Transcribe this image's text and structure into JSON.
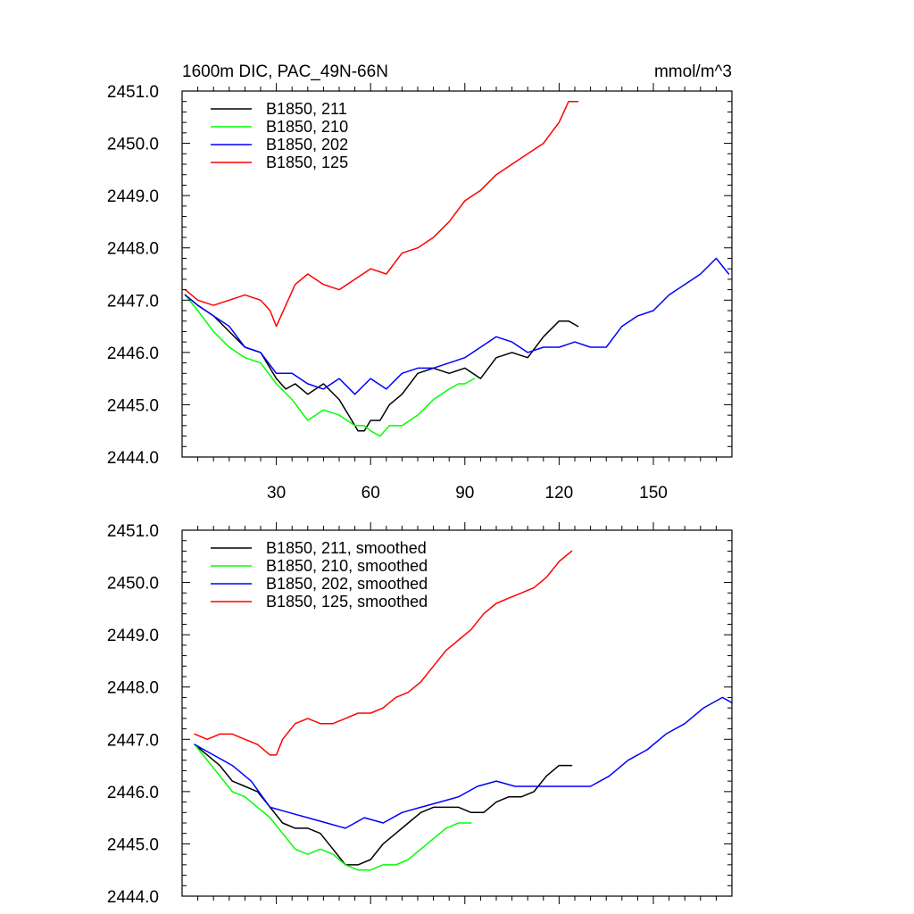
{
  "chart_data": [
    {
      "type": "line",
      "title": "1600m DIC, PAC_49N-66N",
      "units": "mmol/m^3",
      "xlim": [
        0,
        175
      ],
      "ylim": [
        2444.0,
        2451.0
      ],
      "xticks": [
        30,
        60,
        90,
        120,
        150
      ],
      "yticks": [
        2444.0,
        2445.0,
        2446.0,
        2447.0,
        2448.0,
        2449.0,
        2450.0,
        2451.0
      ],
      "ytick_labels": [
        "2444.0",
        "2445.0",
        "2446.0",
        "2447.0",
        "2448.0",
        "2449.0",
        "2450.0",
        "2451.0"
      ],
      "xtick_labels": [
        "30",
        "60",
        "90",
        "120",
        "150"
      ],
      "legend_position": "top-left",
      "series": [
        {
          "name": "B1850, 211",
          "color": "#000000",
          "x": [
            1,
            5,
            10,
            15,
            20,
            25,
            30,
            33,
            36,
            40,
            45,
            50,
            53,
            56,
            58,
            60,
            63,
            66,
            70,
            75,
            80,
            85,
            90,
            95,
            100,
            105,
            110,
            115,
            120,
            123,
            126
          ],
          "y": [
            2447.1,
            2446.9,
            2446.7,
            2446.4,
            2446.1,
            2446.0,
            2445.5,
            2445.3,
            2445.4,
            2445.2,
            2445.4,
            2445.1,
            2444.8,
            2444.5,
            2444.5,
            2444.7,
            2444.7,
            2445.0,
            2445.2,
            2445.6,
            2445.7,
            2445.6,
            2445.7,
            2445.5,
            2445.9,
            2446.0,
            2445.9,
            2446.3,
            2446.6,
            2446.6,
            2446.5
          ]
        },
        {
          "name": "B1850, 210",
          "color": "#00ff00",
          "x": [
            1,
            5,
            10,
            15,
            20,
            25,
            30,
            35,
            40,
            45,
            50,
            55,
            58,
            60,
            63,
            66,
            70,
            75,
            80,
            85,
            88,
            90,
            93
          ],
          "y": [
            2447.1,
            2446.8,
            2446.4,
            2446.1,
            2445.9,
            2445.8,
            2445.4,
            2445.1,
            2444.7,
            2444.9,
            2444.8,
            2444.6,
            2444.6,
            2444.5,
            2444.4,
            2444.6,
            2444.6,
            2444.8,
            2445.1,
            2445.3,
            2445.4,
            2445.4,
            2445.5
          ]
        },
        {
          "name": "B1850, 202",
          "color": "#0000ff",
          "x": [
            1,
            5,
            10,
            15,
            20,
            25,
            30,
            35,
            40,
            45,
            50,
            55,
            60,
            65,
            70,
            75,
            80,
            85,
            90,
            95,
            100,
            105,
            110,
            115,
            120,
            125,
            130,
            135,
            140,
            145,
            150,
            155,
            160,
            165,
            170,
            174
          ],
          "y": [
            2447.1,
            2446.9,
            2446.7,
            2446.5,
            2446.1,
            2446.0,
            2445.6,
            2445.6,
            2445.4,
            2445.3,
            2445.5,
            2445.2,
            2445.5,
            2445.3,
            2445.6,
            2445.7,
            2445.7,
            2445.8,
            2445.9,
            2446.1,
            2446.3,
            2446.2,
            2446.0,
            2446.1,
            2446.1,
            2446.2,
            2446.1,
            2446.1,
            2446.5,
            2446.7,
            2446.8,
            2447.1,
            2447.3,
            2447.5,
            2447.8,
            2447.5
          ]
        },
        {
          "name": "B1850, 125",
          "color": "#ff0000",
          "x": [
            1,
            5,
            10,
            15,
            20,
            25,
            28,
            30,
            33,
            36,
            40,
            45,
            50,
            55,
            60,
            65,
            70,
            75,
            80,
            85,
            90,
            95,
            100,
            105,
            110,
            115,
            120,
            123,
            126
          ],
          "y": [
            2447.2,
            2447.0,
            2446.9,
            2447.0,
            2447.1,
            2447.0,
            2446.8,
            2446.5,
            2446.9,
            2447.3,
            2447.5,
            2447.3,
            2447.2,
            2447.4,
            2447.6,
            2447.5,
            2447.9,
            2448.0,
            2448.2,
            2448.5,
            2448.9,
            2449.1,
            2449.4,
            2449.6,
            2449.8,
            2450.0,
            2450.4,
            2450.8,
            2450.8
          ]
        }
      ]
    },
    {
      "type": "line",
      "xlim": [
        0,
        175
      ],
      "ylim": [
        2444.0,
        2451.0
      ],
      "xticks": [
        30,
        60,
        90,
        120,
        150
      ],
      "yticks": [
        2444.0,
        2445.0,
        2446.0,
        2447.0,
        2448.0,
        2449.0,
        2450.0,
        2451.0
      ],
      "ytick_labels": [
        "2444.0",
        "2445.0",
        "2446.0",
        "2447.0",
        "2448.0",
        "2449.0",
        "2450.0",
        "2451.0"
      ],
      "legend_position": "top-left",
      "series": [
        {
          "name": "B1850, 211, smoothed",
          "color": "#000000",
          "x": [
            4,
            8,
            12,
            16,
            20,
            24,
            28,
            32,
            36,
            40,
            44,
            48,
            52,
            56,
            60,
            64,
            68,
            72,
            76,
            80,
            84,
            88,
            92,
            96,
            100,
            104,
            108,
            112,
            116,
            120,
            124
          ],
          "y": [
            2446.9,
            2446.7,
            2446.5,
            2446.2,
            2446.1,
            2446.0,
            2445.7,
            2445.4,
            2445.3,
            2445.3,
            2445.2,
            2444.9,
            2444.6,
            2444.6,
            2444.7,
            2445.0,
            2445.2,
            2445.4,
            2445.6,
            2445.7,
            2445.7,
            2445.7,
            2445.6,
            2445.6,
            2445.8,
            2445.9,
            2445.9,
            2446.0,
            2446.3,
            2446.5,
            2446.5
          ]
        },
        {
          "name": "B1850, 210, smoothed",
          "color": "#00ff00",
          "x": [
            4,
            8,
            12,
            16,
            20,
            24,
            28,
            32,
            36,
            40,
            44,
            48,
            52,
            56,
            60,
            64,
            68,
            72,
            76,
            80,
            84,
            88,
            92
          ],
          "y": [
            2446.9,
            2446.6,
            2446.3,
            2446.0,
            2445.9,
            2445.7,
            2445.5,
            2445.2,
            2444.9,
            2444.8,
            2444.9,
            2444.8,
            2444.6,
            2444.5,
            2444.5,
            2444.6,
            2444.6,
            2444.7,
            2444.9,
            2445.1,
            2445.3,
            2445.4,
            2445.4
          ]
        },
        {
          "name": "B1850, 202, smoothed",
          "color": "#0000ff",
          "x": [
            4,
            10,
            16,
            22,
            28,
            34,
            40,
            46,
            52,
            58,
            64,
            70,
            76,
            82,
            88,
            94,
            100,
            106,
            112,
            118,
            124,
            130,
            136,
            142,
            148,
            154,
            160,
            166,
            172,
            175
          ],
          "y": [
            2446.9,
            2446.7,
            2446.5,
            2446.2,
            2445.7,
            2445.6,
            2445.5,
            2445.4,
            2445.3,
            2445.5,
            2445.4,
            2445.6,
            2445.7,
            2445.8,
            2445.9,
            2446.1,
            2446.2,
            2446.1,
            2446.1,
            2446.1,
            2446.1,
            2446.1,
            2446.3,
            2446.6,
            2446.8,
            2447.1,
            2447.3,
            2447.6,
            2447.8,
            2447.7
          ]
        },
        {
          "name": "B1850, 125, smoothed",
          "color": "#ff0000",
          "x": [
            4,
            8,
            12,
            16,
            20,
            24,
            28,
            30,
            32,
            36,
            40,
            44,
            48,
            52,
            56,
            60,
            64,
            68,
            72,
            76,
            80,
            84,
            88,
            92,
            96,
            100,
            104,
            108,
            112,
            116,
            120,
            124
          ],
          "y": [
            2447.1,
            2447.0,
            2447.1,
            2447.1,
            2447.0,
            2446.9,
            2446.7,
            2446.7,
            2447.0,
            2447.3,
            2447.4,
            2447.3,
            2447.3,
            2447.4,
            2447.5,
            2447.5,
            2447.6,
            2447.8,
            2447.9,
            2448.1,
            2448.4,
            2448.7,
            2448.9,
            2449.1,
            2449.4,
            2449.6,
            2449.7,
            2449.8,
            2449.9,
            2450.1,
            2450.4,
            2450.6
          ]
        }
      ]
    }
  ]
}
